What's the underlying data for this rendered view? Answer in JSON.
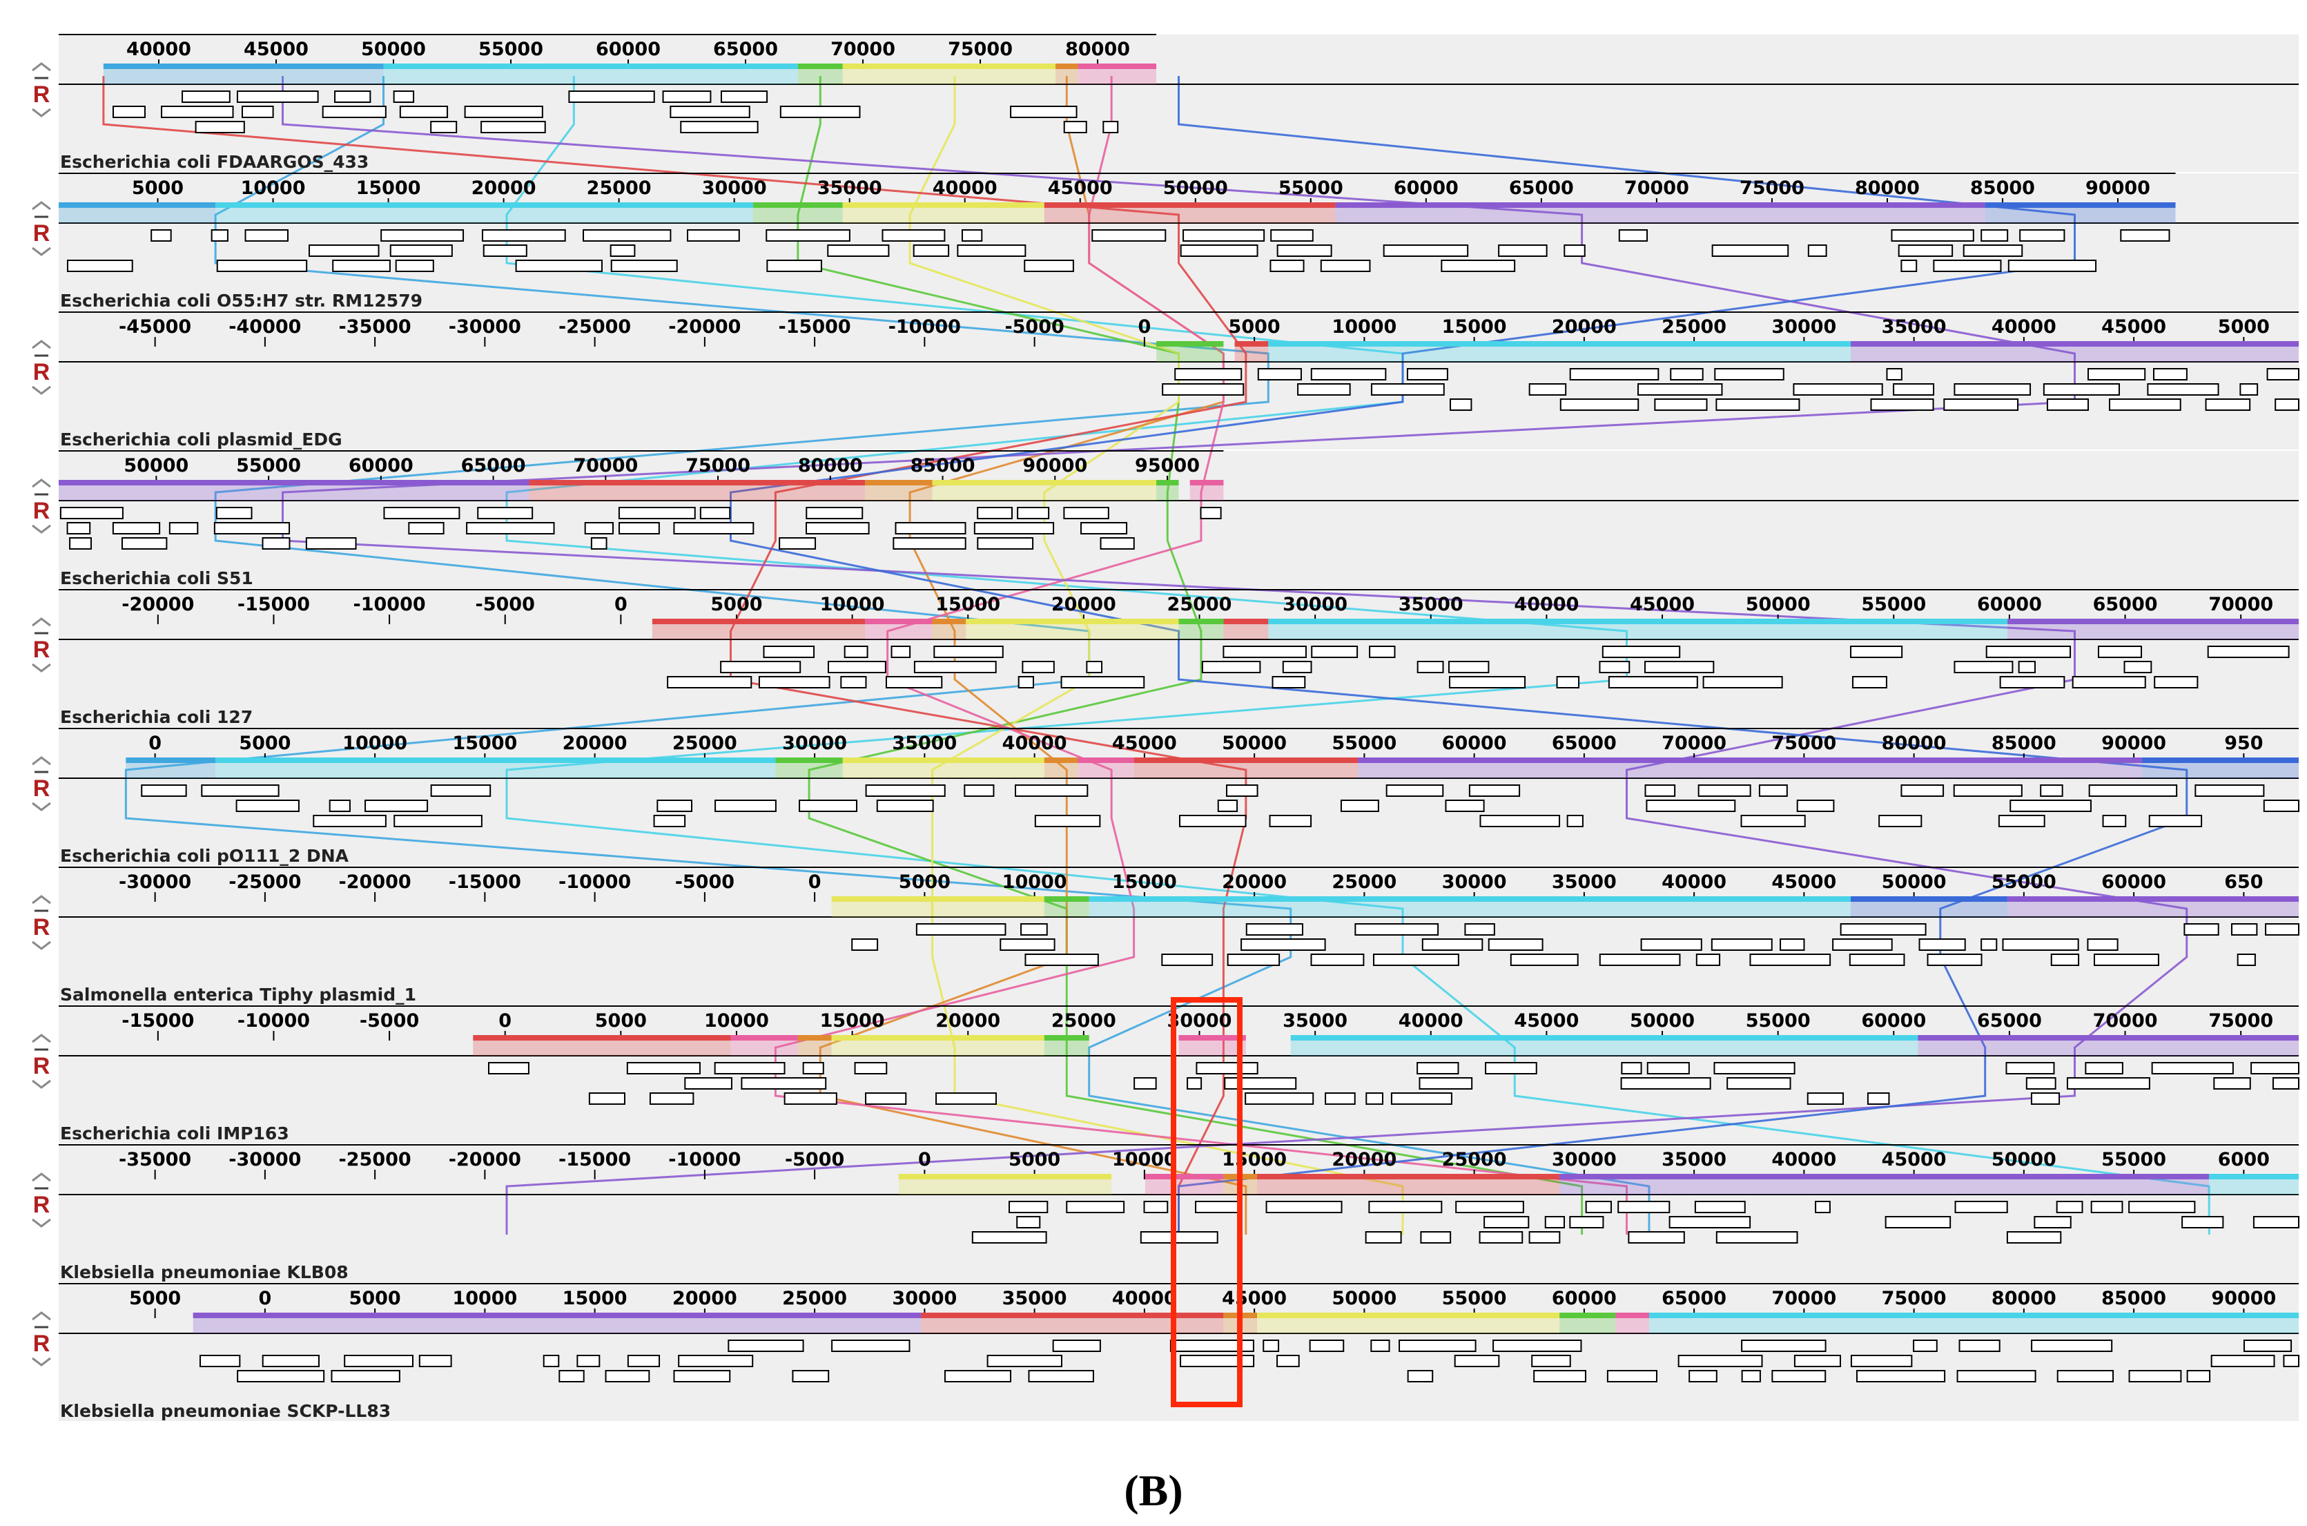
{
  "figure_label": "(B)",
  "controls": {
    "reverse_label": "R"
  },
  "colors": {
    "blue": "#3fa7e0",
    "cyan": "#49d3e8",
    "green": "#5ac83c",
    "yellow": "#e6e65a",
    "orange": "#e08a30",
    "red": "#e04848",
    "pink": "#e860a0",
    "purple": "#8a5ad0",
    "darkblue": "#3a6ad8",
    "highlight": "#ff2a0a"
  },
  "tracks": [
    {
      "name": "Escherichia coli FDAARGOS_433",
      "ticks": [
        "40000",
        "45000",
        "50000",
        "55000",
        "60000",
        "65000",
        "70000",
        "75000",
        "80000"
      ],
      "ruler_end": 0.49,
      "blocks": [
        {
          "c": "blue",
          "s": 0.02,
          "e": 0.145
        },
        {
          "c": "cyan",
          "s": 0.145,
          "e": 0.33
        },
        {
          "c": "green",
          "s": 0.33,
          "e": 0.35
        },
        {
          "c": "yellow",
          "s": 0.35,
          "e": 0.445
        },
        {
          "c": "orange",
          "s": 0.445,
          "e": 0.455
        },
        {
          "c": "pink",
          "s": 0.455,
          "e": 0.49
        }
      ]
    },
    {
      "name": "Escherichia coli O55:H7 str. RM12579",
      "ticks": [
        "5000",
        "10000",
        "15000",
        "20000",
        "25000",
        "30000",
        "35000",
        "40000",
        "45000",
        "50000",
        "55000",
        "60000",
        "65000",
        "70000",
        "75000",
        "80000",
        "85000",
        "90000"
      ],
      "ruler_end": 0.945,
      "blocks": [
        {
          "c": "blue",
          "s": 0.0,
          "e": 0.07
        },
        {
          "c": "cyan",
          "s": 0.07,
          "e": 0.31
        },
        {
          "c": "green",
          "s": 0.31,
          "e": 0.35
        },
        {
          "c": "yellow",
          "s": 0.35,
          "e": 0.44
        },
        {
          "c": "red",
          "s": 0.44,
          "e": 0.57
        },
        {
          "c": "purple",
          "s": 0.57,
          "e": 0.86
        },
        {
          "c": "darkblue",
          "s": 0.86,
          "e": 0.945
        }
      ]
    },
    {
      "name": "Escherichia coli plasmid_EDG",
      "ticks": [
        "-45000",
        "-40000",
        "-35000",
        "-30000",
        "-25000",
        "-20000",
        "-15000",
        "-10000",
        "-5000",
        "0",
        "5000",
        "10000",
        "15000",
        "20000",
        "25000",
        "30000",
        "35000",
        "40000",
        "45000",
        "5000"
      ],
      "ruler_end": 1.0,
      "blocks": [
        {
          "c": "green",
          "s": 0.49,
          "e": 0.52
        },
        {
          "c": "red",
          "s": 0.525,
          "e": 0.54
        },
        {
          "c": "cyan",
          "s": 0.54,
          "e": 0.8
        },
        {
          "c": "purple",
          "s": 0.8,
          "e": 1.0
        }
      ]
    },
    {
      "name": "Escherichia coli S51",
      "ticks": [
        "50000",
        "55000",
        "60000",
        "65000",
        "70000",
        "75000",
        "80000",
        "85000",
        "90000",
        "95000"
      ],
      "ruler_end": 0.52,
      "blocks": [
        {
          "c": "purple",
          "s": 0.0,
          "e": 0.21
        },
        {
          "c": "red",
          "s": 0.21,
          "e": 0.36
        },
        {
          "c": "orange",
          "s": 0.36,
          "e": 0.39
        },
        {
          "c": "yellow",
          "s": 0.39,
          "e": 0.49
        },
        {
          "c": "green",
          "s": 0.49,
          "e": 0.5
        },
        {
          "c": "pink",
          "s": 0.505,
          "e": 0.52
        }
      ]
    },
    {
      "name": "Escherichia coli 127",
      "ticks": [
        "-20000",
        "-15000",
        "-10000",
        "-5000",
        "0",
        "5000",
        "10000",
        "15000",
        "20000",
        "25000",
        "30000",
        "35000",
        "40000",
        "45000",
        "50000",
        "55000",
        "60000",
        "65000",
        "70000"
      ],
      "ruler_end": 1.0,
      "blocks": [
        {
          "c": "red",
          "s": 0.265,
          "e": 0.36
        },
        {
          "c": "pink",
          "s": 0.36,
          "e": 0.39
        },
        {
          "c": "orange",
          "s": 0.39,
          "e": 0.405
        },
        {
          "c": "yellow",
          "s": 0.405,
          "e": 0.5
        },
        {
          "c": "green",
          "s": 0.5,
          "e": 0.52
        },
        {
          "c": "red",
          "s": 0.52,
          "e": 0.54
        },
        {
          "c": "cyan",
          "s": 0.54,
          "e": 0.87
        },
        {
          "c": "purple",
          "s": 0.87,
          "e": 1.0
        }
      ]
    },
    {
      "name": "Escherichia coli pO111_2 DNA",
      "ticks": [
        "0",
        "5000",
        "10000",
        "15000",
        "20000",
        "25000",
        "30000",
        "35000",
        "40000",
        "45000",
        "50000",
        "55000",
        "60000",
        "65000",
        "70000",
        "75000",
        "80000",
        "85000",
        "90000",
        "950"
      ],
      "ruler_end": 1.0,
      "blocks": [
        {
          "c": "blue",
          "s": 0.03,
          "e": 0.07
        },
        {
          "c": "cyan",
          "s": 0.07,
          "e": 0.32
        },
        {
          "c": "green",
          "s": 0.32,
          "e": 0.35
        },
        {
          "c": "yellow",
          "s": 0.35,
          "e": 0.44
        },
        {
          "c": "orange",
          "s": 0.44,
          "e": 0.455
        },
        {
          "c": "pink",
          "s": 0.455,
          "e": 0.48
        },
        {
          "c": "red",
          "s": 0.48,
          "e": 0.58
        },
        {
          "c": "purple",
          "s": 0.58,
          "e": 0.93
        },
        {
          "c": "darkblue",
          "s": 0.93,
          "e": 1.0
        }
      ]
    },
    {
      "name": "Salmonella enterica Tiphy plasmid_1",
      "ticks": [
        "-30000",
        "-25000",
        "-20000",
        "-15000",
        "-10000",
        "-5000",
        "0",
        "5000",
        "10000",
        "15000",
        "20000",
        "25000",
        "30000",
        "35000",
        "40000",
        "45000",
        "50000",
        "55000",
        "60000",
        "650"
      ],
      "ruler_end": 1.0,
      "blocks": [
        {
          "c": "yellow",
          "s": 0.345,
          "e": 0.44
        },
        {
          "c": "green",
          "s": 0.44,
          "e": 0.46
        },
        {
          "c": "cyan",
          "s": 0.46,
          "e": 0.8
        },
        {
          "c": "darkblue",
          "s": 0.8,
          "e": 0.87
        },
        {
          "c": "purple",
          "s": 0.87,
          "e": 1.0
        }
      ]
    },
    {
      "name": "Escherichia coli IMP163",
      "ticks": [
        "-15000",
        "-10000",
        "-5000",
        "0",
        "5000",
        "10000",
        "15000",
        "20000",
        "25000",
        "30000",
        "35000",
        "40000",
        "45000",
        "50000",
        "55000",
        "60000",
        "65000",
        "70000",
        "75000"
      ],
      "ruler_end": 1.0,
      "blocks": [
        {
          "c": "red",
          "s": 0.185,
          "e": 0.3
        },
        {
          "c": "pink",
          "s": 0.3,
          "e": 0.33
        },
        {
          "c": "orange",
          "s": 0.33,
          "e": 0.345
        },
        {
          "c": "yellow",
          "s": 0.345,
          "e": 0.44
        },
        {
          "c": "green",
          "s": 0.44,
          "e": 0.46
        },
        {
          "c": "pink",
          "s": 0.5,
          "e": 0.53
        },
        {
          "c": "cyan",
          "s": 0.55,
          "e": 0.83
        },
        {
          "c": "purple",
          "s": 0.83,
          "e": 1.0
        }
      ]
    },
    {
      "name": "Klebsiella pneumoniae KLB08",
      "ticks": [
        "-35000",
        "-30000",
        "-25000",
        "-20000",
        "-15000",
        "-10000",
        "-5000",
        "0",
        "5000",
        "10000",
        "15000",
        "20000",
        "25000",
        "30000",
        "35000",
        "40000",
        "45000",
        "50000",
        "55000",
        "6000"
      ],
      "ruler_end": 1.0,
      "blocks": [
        {
          "c": "yellow",
          "s": 0.375,
          "e": 0.47
        },
        {
          "c": "pink",
          "s": 0.485,
          "e": 0.52
        },
        {
          "c": "orange",
          "s": 0.52,
          "e": 0.535
        },
        {
          "c": "red",
          "s": 0.535,
          "e": 0.67
        },
        {
          "c": "purple",
          "s": 0.67,
          "e": 0.96
        },
        {
          "c": "cyan",
          "s": 0.96,
          "e": 1.0
        }
      ]
    },
    {
      "name": "Klebsiella pneumoniae SCKP-LL83",
      "ticks": [
        "5000",
        "0",
        "5000",
        "10000",
        "15000",
        "20000",
        "25000",
        "30000",
        "35000",
        "40000",
        "45000",
        "50000",
        "55000",
        "60000",
        "65000",
        "70000",
        "75000",
        "80000",
        "85000",
        "90000"
      ],
      "ruler_end": 1.0,
      "blocks": [
        {
          "c": "purple",
          "s": 0.06,
          "e": 0.385
        },
        {
          "c": "red",
          "s": 0.385,
          "e": 0.52
        },
        {
          "c": "orange",
          "s": 0.52,
          "e": 0.535
        },
        {
          "c": "yellow",
          "s": 0.535,
          "e": 0.67
        },
        {
          "c": "green",
          "s": 0.67,
          "e": 0.695
        },
        {
          "c": "pink",
          "s": 0.695,
          "e": 0.71
        },
        {
          "c": "cyan",
          "s": 0.71,
          "e": 1.0
        }
      ]
    }
  ],
  "connectors": [
    {
      "c": "blue",
      "pts": [
        0.145,
        0.07,
        0.54,
        0.07,
        0.46,
        0.03,
        0.55,
        0.46,
        0.71
      ]
    },
    {
      "c": "cyan",
      "pts": [
        0.23,
        0.2,
        0.6,
        0.2,
        0.7,
        0.2,
        0.6,
        0.65,
        0.96
      ]
    },
    {
      "c": "green",
      "pts": [
        0.34,
        0.33,
        0.5,
        0.495,
        0.51,
        0.335,
        0.45,
        0.45,
        0.68
      ]
    },
    {
      "c": "yellow",
      "pts": [
        0.4,
        0.38,
        0.5,
        0.44,
        0.46,
        0.39,
        0.39,
        0.4,
        0.6
      ]
    },
    {
      "c": "orange",
      "pts": [
        0.45,
        0.46,
        0.52,
        0.38,
        0.4,
        0.45,
        0.45,
        0.34,
        0.53
      ]
    },
    {
      "c": "red",
      "pts": [
        0.02,
        0.5,
        0.53,
        0.32,
        0.3,
        0.53,
        0.52,
        0.52,
        0.5
      ]
    },
    {
      "c": "pink",
      "pts": [
        0.47,
        0.46,
        0.52,
        0.51,
        0.37,
        0.47,
        0.48,
        0.32,
        0.7
      ]
    },
    {
      "c": "purple",
      "pts": [
        0.1,
        0.68,
        0.9,
        0.1,
        0.9,
        0.7,
        0.95,
        0.9,
        0.2
      ]
    },
    {
      "c": "darkblue",
      "pts": [
        0.5,
        0.9,
        0.6,
        0.3,
        0.5,
        0.95,
        0.84,
        0.86,
        0.5
      ]
    }
  ]
}
